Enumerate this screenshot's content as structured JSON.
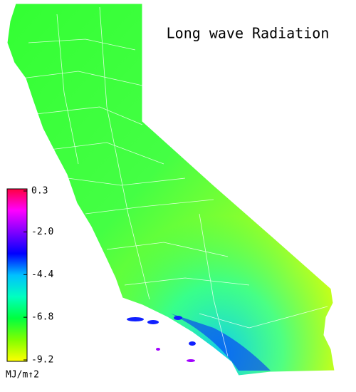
{
  "title": "Long wave Radiation",
  "colorbar": {
    "lim": [
      -9.2,
      0.3
    ],
    "ticks": [
      0.3,
      {
        "value": -2,
        "label": "-2.0"
      },
      -4.4,
      -6.8,
      -9.2
    ],
    "unit": "MJ/m↑2",
    "colors": [
      "#ffff00",
      "#80ff00",
      "#00ff40",
      "#00ffc0",
      "#00c0ff",
      "#0000ff",
      "#8000ff",
      "#ff00ff",
      "#ff0040"
    ]
  }
}
